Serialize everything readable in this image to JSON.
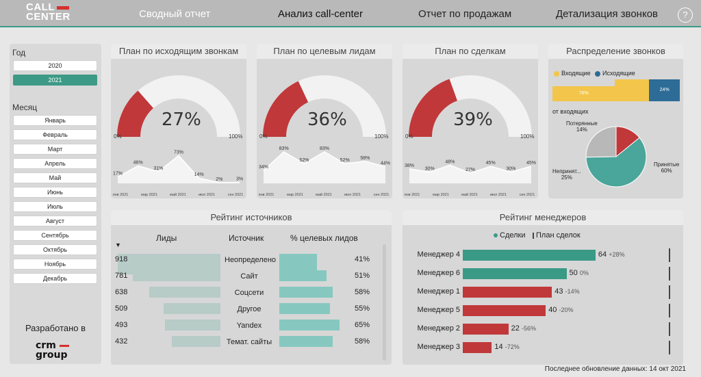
{
  "header": {
    "logo_line1": "CALL",
    "logo_line2": "CENTER",
    "tabs": [
      {
        "label": "Сводный отчет"
      },
      {
        "label": "Анализ call-center"
      },
      {
        "label": "Отчет по продажам"
      },
      {
        "label": "Детализация звонков"
      }
    ],
    "help": "?"
  },
  "sidebar": {
    "year_label": "Год",
    "years": [
      "2020",
      "2021"
    ],
    "selected_year": "2021",
    "month_label": "Месяц",
    "months": [
      "Январь",
      "Февраль",
      "Март",
      "Апрель",
      "Май",
      "Июнь",
      "Июль",
      "Август",
      "Сентябрь",
      "Октябрь",
      "Ноябрь",
      "Декабрь"
    ],
    "developed_by": "Разработано в",
    "brand_line1": "crm",
    "brand_line2": "group"
  },
  "gauges": [
    {
      "title": "План по исходящим звонкам",
      "pct_text": "27%",
      "value": 0.27,
      "min": "0%",
      "max": "100%",
      "trend": [
        17,
        46,
        31,
        73,
        14,
        2,
        3
      ],
      "trend_labels": [
        "17%",
        "46%",
        "31%",
        "73%",
        "14%",
        "2%",
        "3%"
      ]
    },
    {
      "title": "План по целевым лидам",
      "pct_text": "36%",
      "value": 0.36,
      "min": "0%",
      "max": "100%",
      "trend": [
        34,
        83,
        52,
        83,
        52,
        58,
        44
      ],
      "trend_labels": [
        "34%",
        "83%",
        "52%",
        "83%",
        "52%",
        "58%",
        "44%"
      ]
    },
    {
      "title": "План по сделкам",
      "pct_text": "39%",
      "value": 0.39,
      "min": "0%",
      "max": "100%",
      "trend": [
        38,
        30,
        48,
        27,
        45,
        30,
        45
      ],
      "trend_labels": [
        "38%",
        "30%",
        "48%",
        "27%",
        "45%",
        "30%",
        "45%"
      ]
    }
  ],
  "trend_months": [
    "янв 2021",
    "мар 2021",
    "май 2021",
    "июл 2021",
    "сен 2021"
  ],
  "distribution": {
    "title": "Распределение звонков",
    "legend_in": "Входящие",
    "legend_out": "Исходящие",
    "in_pct": "76%",
    "out_pct": "24%",
    "in_value": 76,
    "out_value": 24,
    "subtitle": "от входящих",
    "pie": [
      {
        "label": "Потерянные",
        "pct": "14%",
        "value": 14,
        "color": "#c0383a"
      },
      {
        "label": "Принятые",
        "pct": "60%",
        "value": 60,
        "color": "#4aa59a"
      },
      {
        "label": "Непринят...",
        "pct": "25%",
        "value": 25,
        "color": "#b8b8b8"
      }
    ],
    "colors": {
      "in": "#f3c54a",
      "out": "#2d6c96"
    }
  },
  "sources": {
    "title": "Рейтинг источников",
    "col_leads": "Лиды",
    "col_source": "Источник",
    "col_target": "% целевых лидов",
    "sort_indicator": "▼",
    "rows": [
      {
        "leads": "918",
        "leads_value": 918,
        "source": "Неопределено",
        "target": "41%",
        "target_value": 41
      },
      {
        "leads": "781",
        "leads_value": 781,
        "source": "Сайт",
        "target": "51%",
        "target_value": 51
      },
      {
        "leads": "638",
        "leads_value": 638,
        "source": "Соцсети",
        "target": "58%",
        "target_value": 58
      },
      {
        "leads": "509",
        "leads_value": 509,
        "source": "Другое",
        "target": "55%",
        "target_value": 55
      },
      {
        "leads": "493",
        "leads_value": 493,
        "source": "Yandex",
        "target": "65%",
        "target_value": 65
      },
      {
        "leads": "432",
        "leads_value": 432,
        "source": "Темат. сайты",
        "target": "58%",
        "target_value": 58
      }
    ]
  },
  "managers": {
    "title": "Рейтинг менеджеров",
    "legend_deals": "Сделки",
    "legend_plan": "План сделок",
    "rows": [
      {
        "name": "Менеджер 4",
        "value": 64,
        "value_text": "64",
        "delta": "+28%",
        "color": "#3a9a86"
      },
      {
        "name": "Менеджер 6",
        "value": 50,
        "value_text": "50",
        "delta": "0%",
        "color": "#3a9a86"
      },
      {
        "name": "Менеджер 1",
        "value": 43,
        "value_text": "43",
        "delta": "-14%",
        "color": "#c0383a"
      },
      {
        "name": "Менеджер 5",
        "value": 40,
        "value_text": "40",
        "delta": "-20%",
        "color": "#c0383a"
      },
      {
        "name": "Менеджер 2",
        "value": 22,
        "value_text": "22",
        "delta": "-56%",
        "color": "#c0383a"
      },
      {
        "name": "Менеджер 3",
        "value": 14,
        "value_text": "14",
        "delta": "-72%",
        "color": "#c0383a"
      }
    ]
  },
  "footer": {
    "updated": "Последнее обновление данных: 14 окт 2021"
  }
}
